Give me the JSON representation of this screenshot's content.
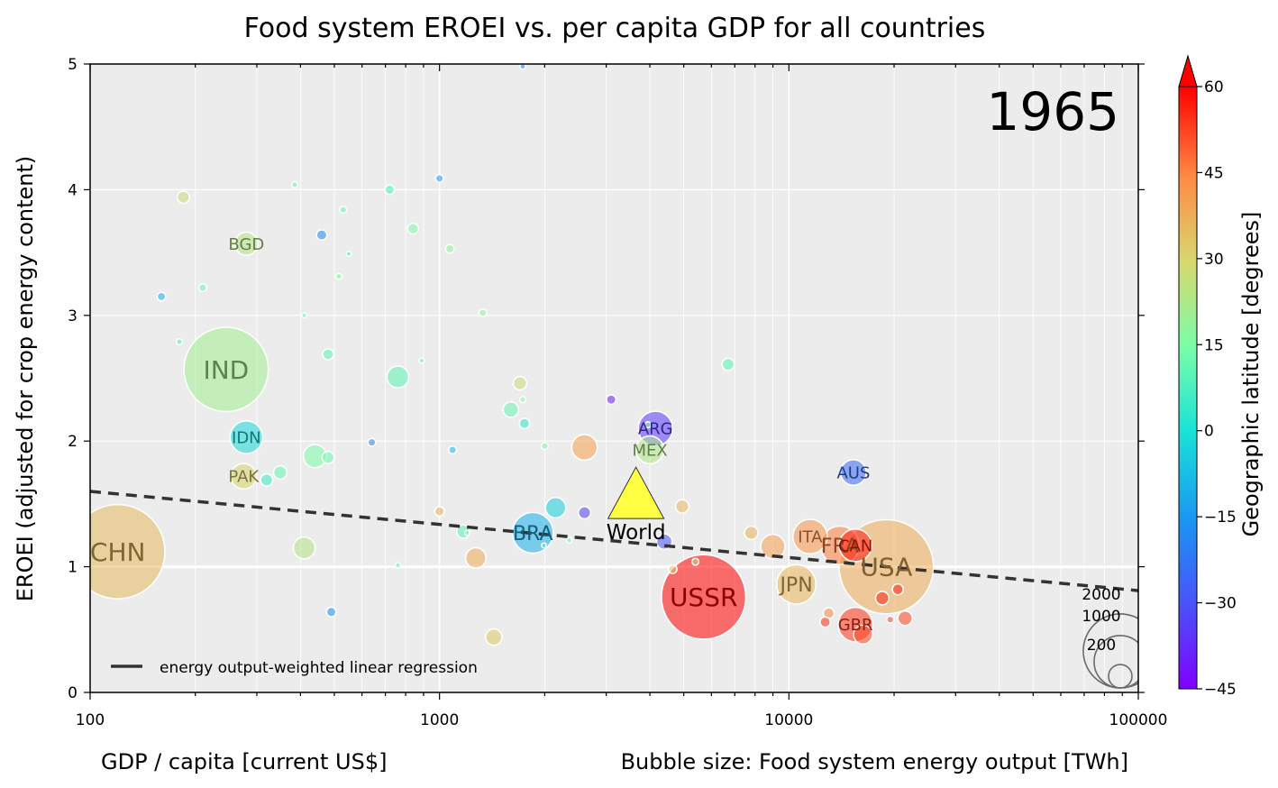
{
  "chart_data": {
    "type": "scatter",
    "title": "Food system EROEI vs. per capita GDP for all countries",
    "year_label": "1965",
    "xlabel": "GDP / capita [current US$]",
    "ylabel": "EROEI (adjusted for crop energy content)",
    "size_label": "Bubble size: Food system energy output [TWh]",
    "x_scale": "log",
    "xlim": [
      100,
      100000
    ],
    "ylim": [
      0,
      5
    ],
    "x_ticks": [
      {
        "value": 100,
        "label": "100"
      },
      {
        "value": 1000,
        "label": "1000"
      },
      {
        "value": 10000,
        "label": "10000"
      },
      {
        "value": 100000,
        "label": "100000"
      }
    ],
    "y_ticks": [
      {
        "value": 0,
        "label": "0"
      },
      {
        "value": 1,
        "label": "1"
      },
      {
        "value": 2,
        "label": "2"
      },
      {
        "value": 3,
        "label": "3"
      },
      {
        "value": 4,
        "label": "4"
      },
      {
        "value": 5,
        "label": "5"
      }
    ],
    "grid": true,
    "colorbar": {
      "label": "Geographic latitude [degrees]",
      "min": -45,
      "max": 60,
      "ticks": [
        {
          "value": 60,
          "label": "60"
        },
        {
          "value": 45,
          "label": "45"
        },
        {
          "value": 30,
          "label": "30"
        },
        {
          "value": 15,
          "label": "15"
        },
        {
          "value": 0,
          "label": "0"
        },
        {
          "value": -15,
          "label": "−15"
        },
        {
          "value": -30,
          "label": "−30"
        },
        {
          "value": -45,
          "label": "−45"
        }
      ]
    },
    "regression": {
      "label": "energy output-weighted linear regression",
      "x": [
        100,
        100000
      ],
      "y": [
        1.6,
        0.81
      ],
      "legend_position": "lower-left"
    },
    "reference_line_y": 1.0,
    "world": {
      "label": "World",
      "x": 3650,
      "y": 1.52,
      "color": "#ffff44"
    },
    "size_legend": [
      {
        "label": "2000",
        "value": 2000
      },
      {
        "label": "1000",
        "value": 1000
      },
      {
        "label": "200",
        "value": 200
      }
    ],
    "points": [
      {
        "label": "CHN",
        "x": 120,
        "y": 1.12,
        "lat": 35,
        "size": 1500
      },
      {
        "label": "IND",
        "x": 245,
        "y": 2.57,
        "lat": 21,
        "size": 1200
      },
      {
        "label": "USSR",
        "x": 5700,
        "y": 0.76,
        "lat": 60,
        "size": 1200
      },
      {
        "label": "USA",
        "x": 19000,
        "y": 1.0,
        "lat": 38,
        "size": 1500
      },
      {
        "label": "JPN",
        "x": 10500,
        "y": 0.86,
        "lat": 36,
        "size": 260
      },
      {
        "label": "FRA",
        "x": 14000,
        "y": 1.17,
        "lat": 46,
        "size": 250
      },
      {
        "label": "CAN",
        "x": 15500,
        "y": 1.17,
        "lat": 57,
        "size": 180
      },
      {
        "label": "ITA",
        "x": 11500,
        "y": 1.24,
        "lat": 42,
        "size": 200
      },
      {
        "label": "GBR",
        "x": 15500,
        "y": 0.54,
        "lat": 54,
        "size": 200
      },
      {
        "label": "BRA",
        "x": 1850,
        "y": 1.27,
        "lat": -10,
        "size": 280
      },
      {
        "label": "ARG",
        "x": 4150,
        "y": 2.1,
        "lat": -34,
        "size": 200
      },
      {
        "label": "MEX",
        "x": 4000,
        "y": 1.93,
        "lat": 23,
        "size": 130
      },
      {
        "label": "AUS",
        "x": 15300,
        "y": 1.75,
        "lat": -25,
        "size": 110
      },
      {
        "label": "IDN",
        "x": 280,
        "y": 2.03,
        "lat": -2,
        "size": 180
      },
      {
        "label": "BGD",
        "x": 280,
        "y": 3.57,
        "lat": 24,
        "size": 90
      },
      {
        "label": "PAK",
        "x": 275,
        "y": 1.72,
        "lat": 30,
        "size": 110
      },
      {
        "label": "",
        "x": 2600,
        "y": 1.95,
        "lat": 40,
        "size": 110
      },
      {
        "label": "",
        "x": 760,
        "y": 2.51,
        "lat": 10,
        "size": 80
      },
      {
        "label": "",
        "x": 410,
        "y": 1.15,
        "lat": 24,
        "size": 80
      },
      {
        "label": "",
        "x": 440,
        "y": 1.88,
        "lat": 15,
        "size": 90
      },
      {
        "label": "",
        "x": 2150,
        "y": 1.47,
        "lat": -4,
        "size": 70
      },
      {
        "label": "",
        "x": 1270,
        "y": 1.07,
        "lat": 38,
        "size": 70
      },
      {
        "label": "",
        "x": 9000,
        "y": 1.16,
        "lat": 40,
        "size": 100
      },
      {
        "label": "",
        "x": 21500,
        "y": 0.59,
        "lat": 52,
        "size": 35
      },
      {
        "label": "",
        "x": 18500,
        "y": 0.75,
        "lat": 56,
        "size": 30
      },
      {
        "label": "",
        "x": 16300,
        "y": 0.46,
        "lat": 52,
        "size": 60
      },
      {
        "label": "",
        "x": 7800,
        "y": 1.27,
        "lat": 37,
        "size": 30
      },
      {
        "label": "",
        "x": 1430,
        "y": 0.44,
        "lat": 32,
        "size": 45
      },
      {
        "label": "",
        "x": 1600,
        "y": 2.25,
        "lat": 12,
        "size": 40
      },
      {
        "label": "",
        "x": 1700,
        "y": 2.46,
        "lat": 28,
        "size": 30
      },
      {
        "label": "",
        "x": 1170,
        "y": 1.28,
        "lat": 10,
        "size": 30
      },
      {
        "label": "",
        "x": 350,
        "y": 1.75,
        "lat": 12,
        "size": 30
      },
      {
        "label": "",
        "x": 320,
        "y": 1.69,
        "lat": 5,
        "size": 25
      },
      {
        "label": "",
        "x": 480,
        "y": 1.87,
        "lat": 13,
        "size": 25
      },
      {
        "label": "",
        "x": 4950,
        "y": 1.48,
        "lat": 35,
        "size": 30
      },
      {
        "label": "",
        "x": 2600,
        "y": 1.43,
        "lat": -33,
        "size": 25
      },
      {
        "label": "",
        "x": 4400,
        "y": 1.2,
        "lat": -30,
        "size": 40
      },
      {
        "label": "",
        "x": 6700,
        "y": 2.61,
        "lat": 10,
        "size": 25
      },
      {
        "label": "",
        "x": 840,
        "y": 3.69,
        "lat": 15,
        "size": 20
      },
      {
        "label": "",
        "x": 480,
        "y": 2.69,
        "lat": 10,
        "size": 20
      },
      {
        "label": "",
        "x": 460,
        "y": 3.64,
        "lat": -18,
        "size": 18
      },
      {
        "label": "",
        "x": 185,
        "y": 3.94,
        "lat": 27,
        "size": 25
      },
      {
        "label": "",
        "x": 720,
        "y": 4.0,
        "lat": 8,
        "size": 15
      },
      {
        "label": "",
        "x": 1000,
        "y": 4.09,
        "lat": -15,
        "size": 10
      },
      {
        "label": "",
        "x": 1070,
        "y": 3.53,
        "lat": 18,
        "size": 12
      },
      {
        "label": "",
        "x": 160,
        "y": 3.15,
        "lat": -10,
        "size": 12
      },
      {
        "label": "",
        "x": 3100,
        "y": 2.33,
        "lat": -40,
        "size": 15
      },
      {
        "label": "",
        "x": 1750,
        "y": 2.14,
        "lat": 3,
        "size": 18
      },
      {
        "label": "",
        "x": 490,
        "y": 0.64,
        "lat": -18,
        "size": 15
      },
      {
        "label": "",
        "x": 640,
        "y": 1.99,
        "lat": -20,
        "size": 10
      },
      {
        "label": "",
        "x": 13000,
        "y": 0.63,
        "lat": 45,
        "size": 20
      },
      {
        "label": "",
        "x": 12700,
        "y": 0.56,
        "lat": 55,
        "size": 18
      },
      {
        "label": "",
        "x": 20500,
        "y": 0.82,
        "lat": 56,
        "size": 20
      },
      {
        "label": "",
        "x": 1000,
        "y": 1.44,
        "lat": 38,
        "size": 15
      },
      {
        "label": "",
        "x": 1090,
        "y": 1.93,
        "lat": -8,
        "size": 10
      },
      {
        "label": "",
        "x": 210,
        "y": 3.22,
        "lat": 12,
        "size": 10
      },
      {
        "label": "",
        "x": 1330,
        "y": 3.02,
        "lat": 18,
        "size": 10
      },
      {
        "label": "",
        "x": 530,
        "y": 3.84,
        "lat": 12,
        "size": 8
      },
      {
        "label": "",
        "x": 2000,
        "y": 1.96,
        "lat": 14,
        "size": 8
      },
      {
        "label": "",
        "x": 4650,
        "y": 0.98,
        "lat": 33,
        "size": 12
      },
      {
        "label": "",
        "x": 5400,
        "y": 1.04,
        "lat": 30,
        "size": 8
      },
      {
        "label": "",
        "x": 19500,
        "y": 0.58,
        "lat": 52,
        "size": 8
      },
      {
        "label": "",
        "x": 385,
        "y": 4.04,
        "lat": 13,
        "size": 6
      },
      {
        "label": "",
        "x": 515,
        "y": 3.31,
        "lat": 14,
        "size": 6
      },
      {
        "label": "",
        "x": 180,
        "y": 2.79,
        "lat": 8,
        "size": 6
      },
      {
        "label": "",
        "x": 1730,
        "y": 2.33,
        "lat": 15,
        "size": 6
      },
      {
        "label": "",
        "x": 2350,
        "y": 1.21,
        "lat": 12,
        "size": 5
      },
      {
        "label": "",
        "x": 3950,
        "y": 2.13,
        "lat": 14,
        "size": 6
      },
      {
        "label": "",
        "x": 760,
        "y": 1.01,
        "lat": 10,
        "size": 5
      },
      {
        "label": "",
        "x": 890,
        "y": 2.64,
        "lat": 13,
        "size": 5
      },
      {
        "label": "",
        "x": 1730,
        "y": 4.98,
        "lat": -20,
        "size": 5
      },
      {
        "label": "",
        "x": 550,
        "y": 3.49,
        "lat": 5,
        "size": 4
      },
      {
        "label": "",
        "x": 410,
        "y": 3.0,
        "lat": 10,
        "size": 4
      },
      {
        "label": "",
        "x": 1990,
        "y": 1.17,
        "lat": 8,
        "size": 4
      },
      {
        "label": "",
        "x": 1200,
        "y": 1.27,
        "lat": 15,
        "size": 4
      }
    ]
  }
}
